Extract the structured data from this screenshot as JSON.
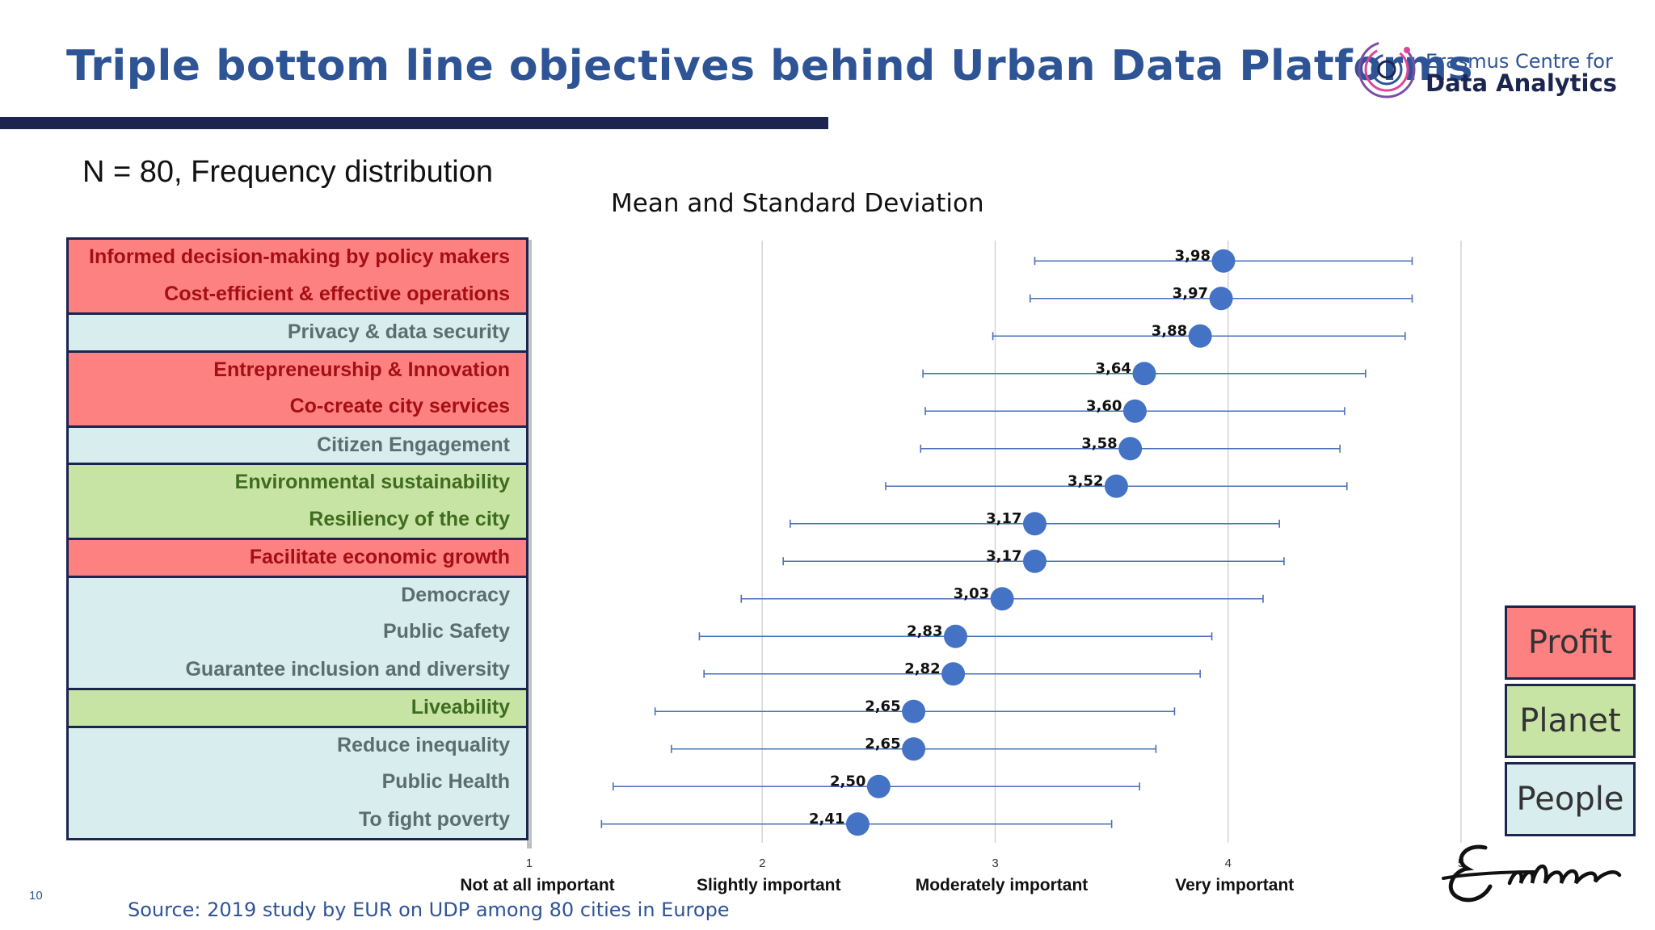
{
  "header": {
    "title": "Triple bottom line objectives behind Urban Data Platforms",
    "logo_line1": "Erasmus Centre for",
    "logo_line2": "Data Analytics"
  },
  "subtitle": "N = 80, Frequency distribution",
  "source": "Source: 2019 study by EUR on UDP among 80 cities in Europe",
  "page_number": "10",
  "colors": {
    "profit_fill": "#fe8181",
    "profit_text": "#a50f14",
    "planet_fill": "#c8e4a4",
    "planet_text": "#3f6c1f",
    "people_fill": "#d8eded",
    "people_text": "#5b6e6e",
    "dot": "#4472c4",
    "title": "#2e5496"
  },
  "legend": [
    {
      "label": "Profit",
      "category": "profit"
    },
    {
      "label": "Planet",
      "category": "planet"
    },
    {
      "label": "People",
      "category": "people"
    }
  ],
  "chart_data": {
    "type": "scatter",
    "title": "Mean and Standard Deviation",
    "xlim": [
      1,
      5
    ],
    "x_ticks": [
      1,
      2,
      3,
      4,
      5
    ],
    "x_tick_labels": [
      "Not at all important",
      "Slightly important",
      "Moderately important",
      "Very important",
      ""
    ],
    "grid": true,
    "categories": [
      "Informed decision-making by policy makers",
      "Cost-efficient & effective  operations",
      "Privacy & data security",
      "Entrepreneurship & Innovation",
      "Co-create city services",
      "Citizen Engagement",
      "Environmental sustainability",
      "Resiliency of the city",
      "Facilitate economic growth",
      "Democracy",
      "Public Safety",
      "Guarantee inclusion and diversity",
      "Liveability",
      "Reduce inequality",
      "Public Health",
      "To fight poverty"
    ],
    "groups": [
      {
        "category": "profit",
        "count": 2
      },
      {
        "category": "people",
        "count": 1
      },
      {
        "category": "profit",
        "count": 2
      },
      {
        "category": "people",
        "count": 1
      },
      {
        "category": "planet",
        "count": 2
      },
      {
        "category": "profit",
        "count": 1
      },
      {
        "category": "people",
        "count": 3
      },
      {
        "category": "planet",
        "count": 1
      },
      {
        "category": "people",
        "count": 3
      }
    ],
    "means": [
      3.98,
      3.97,
      3.88,
      3.64,
      3.6,
      3.58,
      3.52,
      3.17,
      3.17,
      3.03,
      2.83,
      2.82,
      2.65,
      2.65,
      2.5,
      2.41
    ],
    "mean_labels": [
      "3,98",
      "3,97",
      "3,88",
      "3,64",
      "3,60",
      "3,58",
      "3,52",
      "3,17",
      "3,17",
      "3,03",
      "2,83",
      "2,82",
      "2,65",
      "2,65",
      "2,50",
      "2,41"
    ],
    "sd_low": [
      3.17,
      3.15,
      2.99,
      2.69,
      2.7,
      2.68,
      2.53,
      2.12,
      2.09,
      1.91,
      1.73,
      1.75,
      1.54,
      1.61,
      1.36,
      1.31
    ],
    "sd_high": [
      4.79,
      4.79,
      4.76,
      4.59,
      4.5,
      4.48,
      4.51,
      4.22,
      4.24,
      4.15,
      3.93,
      3.88,
      3.77,
      3.69,
      3.62,
      3.5
    ]
  }
}
